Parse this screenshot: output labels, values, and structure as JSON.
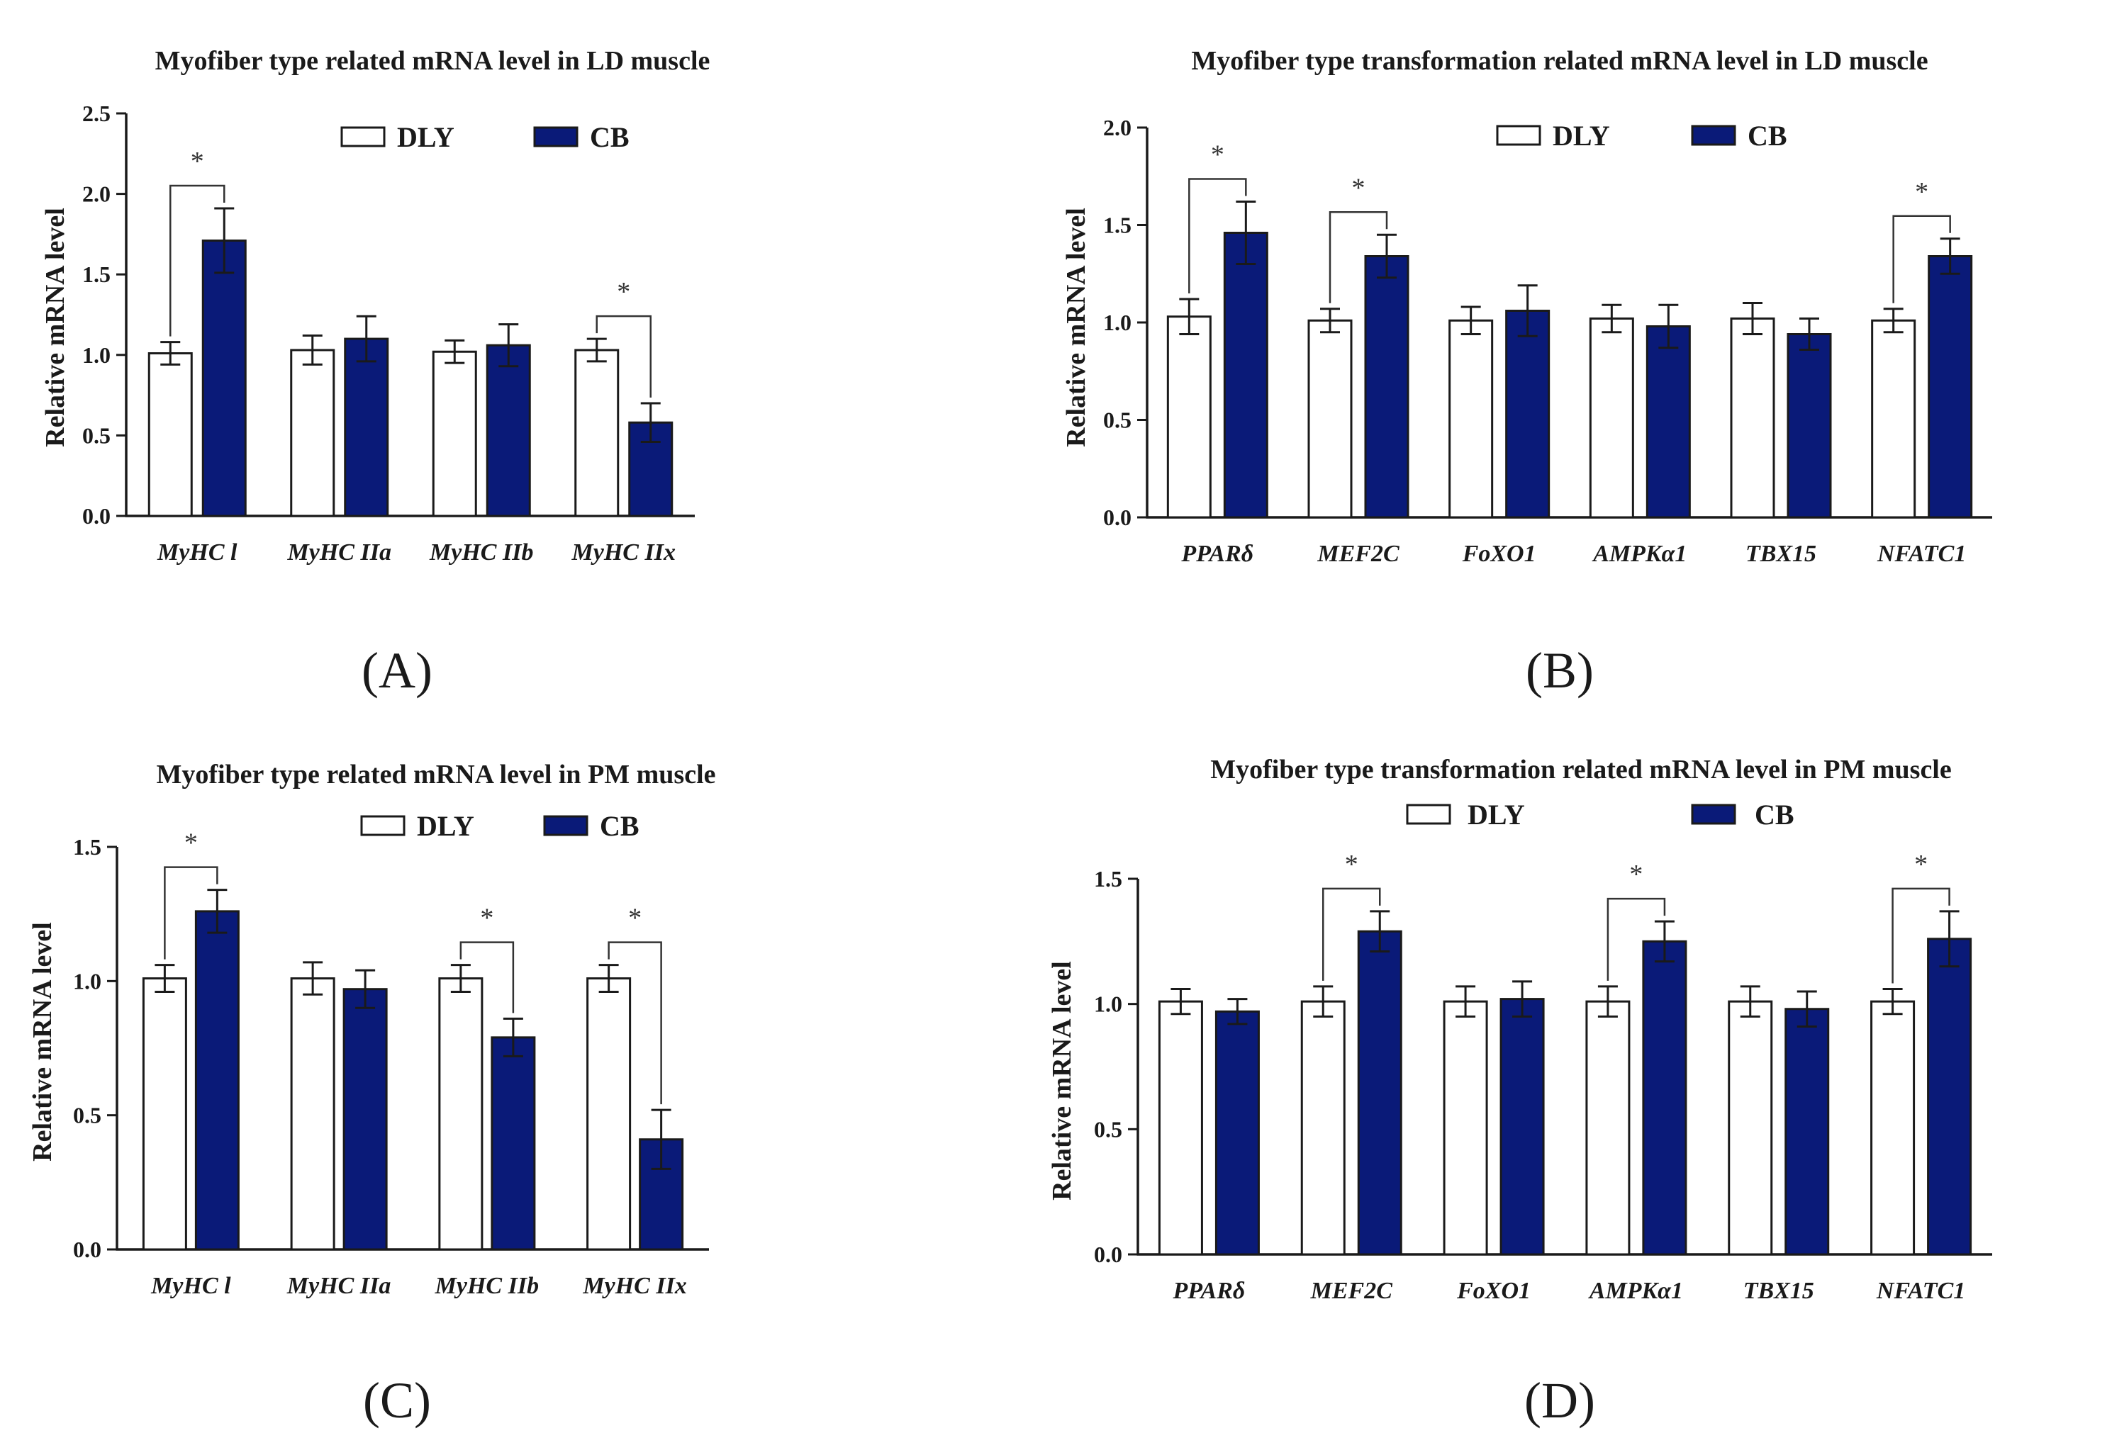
{
  "colors": {
    "DLY": "#ffffff",
    "CB": "#0a1a78",
    "axis": "#1a1a1a"
  },
  "legend_labels": [
    "DLY",
    "CB"
  ],
  "chart_data": [
    {
      "panel": "(A)",
      "type": "bar",
      "title": "Myofiber type related mRNA level in LD muscle",
      "xlabel": "",
      "ylabel": "Relative mRNA level",
      "ylim": [
        0,
        2.5
      ],
      "ytick_labels": [
        "0.0",
        "0.5",
        "1.0",
        "1.5",
        "2.0",
        "2.5"
      ],
      "categories": [
        "MyHC l",
        "MyHC IIa",
        "MyHC IIb",
        "MyHC IIx"
      ],
      "series": [
        {
          "name": "DLY",
          "values": [
            1.01,
            1.03,
            1.02,
            1.03
          ],
          "errors": [
            0.07,
            0.09,
            0.07,
            0.07
          ]
        },
        {
          "name": "CB",
          "values": [
            1.71,
            1.1,
            1.06,
            0.58
          ],
          "errors": [
            0.2,
            0.14,
            0.13,
            0.12
          ]
        }
      ],
      "significance": [
        "*",
        "",
        "",
        "*"
      ],
      "legend_position": "top"
    },
    {
      "panel": "(B)",
      "type": "bar",
      "title": "Myofiber type transformation related mRNA level in LD muscle",
      "xlabel": "",
      "ylabel": "Relative mRNA level",
      "ylim": [
        0,
        2.0
      ],
      "ytick_labels": [
        "0.0",
        "0.5",
        "1.0",
        "1.5",
        "2.0"
      ],
      "categories": [
        "PPARδ",
        "MEF2C",
        "FoXO1",
        "AMPKα1",
        "TBX15",
        "NFATC1"
      ],
      "series": [
        {
          "name": "DLY",
          "values": [
            1.03,
            1.01,
            1.01,
            1.02,
            1.02,
            1.01
          ],
          "errors": [
            0.09,
            0.06,
            0.07,
            0.07,
            0.08,
            0.06
          ]
        },
        {
          "name": "CB",
          "values": [
            1.46,
            1.34,
            1.06,
            0.98,
            0.94,
            1.34
          ],
          "errors": [
            0.16,
            0.11,
            0.13,
            0.11,
            0.08,
            0.09
          ]
        }
      ],
      "significance": [
        "*",
        "*",
        "",
        "",
        "",
        "*"
      ],
      "legend_position": "top"
    },
    {
      "panel": "(C)",
      "type": "bar",
      "title": "Myofiber type related mRNA level in PM muscle",
      "xlabel": "",
      "ylabel": "Relative mRNA level",
      "ylim": [
        0,
        1.5
      ],
      "ytick_labels": [
        "0.0",
        "0.5",
        "1.0",
        "1.5"
      ],
      "categories": [
        "MyHC l",
        "MyHC IIa",
        "MyHC IIb",
        "MyHC IIx"
      ],
      "series": [
        {
          "name": "DLY",
          "values": [
            1.01,
            1.01,
            1.01,
            1.01
          ],
          "errors": [
            0.05,
            0.06,
            0.05,
            0.05
          ]
        },
        {
          "name": "CB",
          "values": [
            1.26,
            0.97,
            0.79,
            0.41
          ],
          "errors": [
            0.08,
            0.07,
            0.07,
            0.11
          ]
        }
      ],
      "significance": [
        "*",
        "",
        "*",
        "*"
      ],
      "legend_position": "top"
    },
    {
      "panel": "(D)",
      "type": "bar",
      "title": "Myofiber type transformation related mRNA level in PM muscle",
      "xlabel": "",
      "ylabel": "Relative mRNA level",
      "ylim": [
        0,
        1.5
      ],
      "ytick_labels": [
        "0.0",
        "0.5",
        "1.0",
        "1.5"
      ],
      "categories": [
        "PPARδ",
        "MEF2C",
        "FoXO1",
        "AMPKα1",
        "TBX15",
        "NFATC1"
      ],
      "series": [
        {
          "name": "DLY",
          "values": [
            1.01,
            1.01,
            1.01,
            1.01,
            1.01,
            1.01
          ],
          "errors": [
            0.05,
            0.06,
            0.06,
            0.06,
            0.06,
            0.05
          ]
        },
        {
          "name": "CB",
          "values": [
            0.97,
            1.29,
            1.02,
            1.25,
            0.98,
            1.26
          ],
          "errors": [
            0.05,
            0.08,
            0.07,
            0.08,
            0.07,
            0.11
          ]
        }
      ],
      "significance": [
        "",
        "*",
        "",
        "*",
        "",
        "*"
      ],
      "legend_position": "top"
    }
  ]
}
